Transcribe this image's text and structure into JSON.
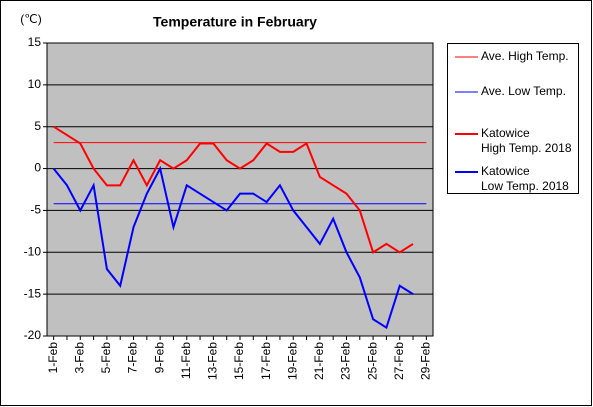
{
  "chart_data": {
    "type": "line",
    "title": "Temperature in February",
    "y_label": "(℃)",
    "categories": [
      "1-Feb",
      null,
      "3-Feb",
      null,
      "5-Feb",
      null,
      "7-Feb",
      null,
      "9-Feb",
      null,
      "11-Feb",
      null,
      "13-Feb",
      null,
      "15-Feb",
      null,
      "17-Feb",
      null,
      "19-Feb",
      null,
      "21-Feb",
      null,
      "23-Feb",
      null,
      "25-Feb",
      null,
      "27-Feb",
      null,
      "29-Feb"
    ],
    "series": [
      {
        "name": "Ave. High Temp.",
        "color": "#ff0000",
        "width": 1,
        "values": [
          3.1,
          3.1,
          3.1,
          3.1,
          3.1,
          3.1,
          3.1,
          3.1,
          3.1,
          3.1,
          3.1,
          3.1,
          3.1,
          3.1,
          3.1,
          3.1,
          3.1,
          3.1,
          3.1,
          3.1,
          3.1,
          3.1,
          3.1,
          3.1,
          3.1,
          3.1,
          3.1,
          3.1,
          3.1
        ]
      },
      {
        "name": "Ave. Low Temp.",
        "color": "#0000ff",
        "width": 1,
        "values": [
          -4.2,
          -4.2,
          -4.2,
          -4.2,
          -4.2,
          -4.2,
          -4.2,
          -4.2,
          -4.2,
          -4.2,
          -4.2,
          -4.2,
          -4.2,
          -4.2,
          -4.2,
          -4.2,
          -4.2,
          -4.2,
          -4.2,
          -4.2,
          -4.2,
          -4.2,
          -4.2,
          -4.2,
          -4.2,
          -4.2,
          -4.2,
          -4.2,
          -4.2
        ]
      },
      {
        "name": "Katowice\nHigh Temp. 2018",
        "color": "#ff0000",
        "width": 2,
        "values": [
          5,
          4,
          3,
          0,
          -2,
          -2,
          1,
          -2,
          1,
          0,
          1,
          3,
          3,
          1,
          0,
          1,
          3,
          2,
          2,
          3,
          -1,
          -2,
          -3,
          -5,
          -10,
          -9,
          -10,
          -9,
          null
        ]
      },
      {
        "name": "Katowice\nLow Temp. 2018",
        "color": "#0000ff",
        "width": 2,
        "values": [
          0,
          -2,
          -5,
          -2,
          -12,
          -14,
          -7,
          -3,
          0,
          -7,
          -2,
          -3,
          -4,
          -5,
          -3,
          -3,
          -4,
          -2,
          -5,
          -7,
          -9,
          -6,
          -10,
          -13,
          -18,
          -19,
          -14,
          -15,
          null
        ]
      }
    ],
    "ylim": [
      -20,
      15
    ],
    "yticks": [
      -20,
      -15,
      -10,
      -5,
      0,
      5,
      10,
      15
    ],
    "grid": true,
    "legend": "right",
    "plot_bg": "#c0c0c0"
  }
}
